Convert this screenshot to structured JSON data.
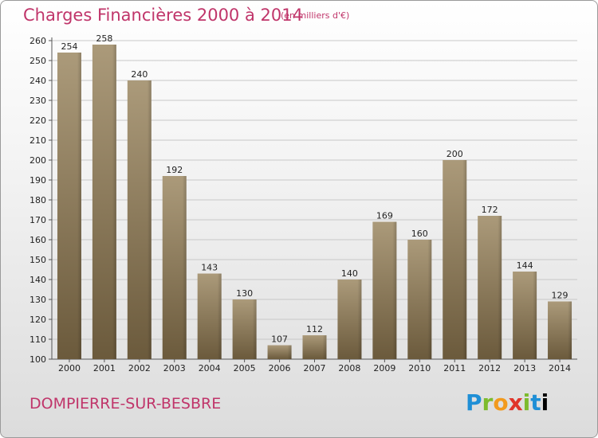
{
  "header": {
    "title": "Charges Financières 2000 à 2014",
    "subtitle": "(en milliers d'€)"
  },
  "footer": {
    "commune": "DOMPIERRE-SUR-BESBRE",
    "logo_text": "Proxiti"
  },
  "colors": {
    "title": "#c0356a",
    "bar_light": "#a89676",
    "bar_dark": "#6e5c3e",
    "grid": "#c8c8c8"
  },
  "chart_data": {
    "type": "bar",
    "title": "Charges Financières 2000 à 2014",
    "subtitle": "(en milliers d'€)",
    "xlabel": "",
    "ylabel": "",
    "categories": [
      "2000",
      "2001",
      "2002",
      "2003",
      "2004",
      "2005",
      "2006",
      "2007",
      "2008",
      "2009",
      "2010",
      "2011",
      "2012",
      "2013",
      "2014"
    ],
    "values": [
      254,
      258,
      240,
      192,
      143,
      130,
      107,
      112,
      140,
      169,
      160,
      200,
      172,
      144,
      129
    ],
    "ylim": [
      100,
      260
    ],
    "yticks": [
      100,
      110,
      120,
      130,
      140,
      150,
      160,
      170,
      180,
      190,
      200,
      210,
      220,
      230,
      240,
      250,
      260
    ],
    "grid": true,
    "data_labels": true
  }
}
